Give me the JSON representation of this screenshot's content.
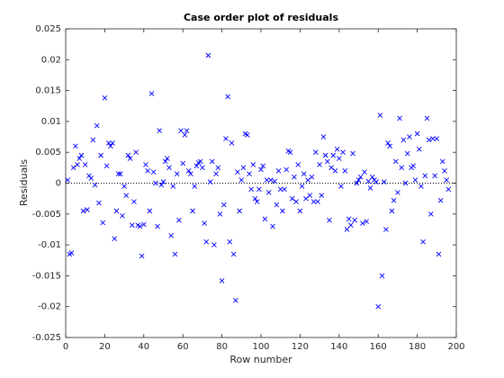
{
  "chart_data": {
    "type": "scatter",
    "title": "Case order plot of residuals",
    "xlabel": "Row number",
    "ylabel": "Residuals",
    "x": [
      1,
      2,
      3,
      4,
      5,
      6,
      7,
      8,
      9,
      10,
      11,
      12,
      13,
      14,
      15,
      16,
      17,
      18,
      19,
      20,
      21,
      22,
      23,
      24,
      25,
      26,
      27,
      28,
      29,
      30,
      31,
      32,
      33,
      34,
      35,
      36,
      37,
      38,
      39,
      40,
      41,
      42,
      43,
      44,
      45,
      46,
      47,
      48,
      49,
      50,
      51,
      52,
      53,
      54,
      55,
      56,
      57,
      58,
      59,
      60,
      61,
      62,
      63,
      64,
      65,
      66,
      67,
      68,
      69,
      70,
      71,
      72,
      73,
      74,
      75,
      76,
      77,
      78,
      79,
      80,
      81,
      82,
      83,
      84,
      85,
      86,
      87,
      88,
      89,
      90,
      91,
      92,
      93,
      94,
      95,
      96,
      97,
      98,
      99,
      100,
      101,
      102,
      103,
      104,
      105,
      106,
      107,
      108,
      109,
      110,
      111,
      112,
      113,
      114,
      115,
      116,
      117,
      118,
      119,
      120,
      121,
      122,
      123,
      124,
      125,
      126,
      127,
      128,
      129,
      130,
      131,
      132,
      133,
      134,
      135,
      136,
      137,
      138,
      139,
      140,
      141,
      142,
      143,
      144,
      145,
      146,
      147,
      148,
      149,
      150,
      151,
      152,
      153,
      154,
      155,
      156,
      157,
      158,
      159,
      160,
      161,
      162,
      163,
      164,
      165,
      166,
      167,
      168,
      169,
      170,
      171,
      172,
      173,
      174,
      175,
      176,
      177,
      178,
      179,
      180,
      181,
      182,
      183,
      184,
      185,
      186,
      187,
      188,
      189,
      190,
      191,
      192,
      193,
      194,
      195,
      196
    ],
    "values": [
      0.0005,
      -0.0115,
      -0.0113,
      0.0025,
      0.006,
      0.003,
      0.004,
      0.0045,
      -0.0045,
      0.003,
      -0.0043,
      0.0012,
      0.0008,
      0.007,
      -0.0003,
      0.0093,
      -0.0032,
      0.0045,
      -0.0064,
      0.0138,
      0.0028,
      0.0065,
      0.006,
      0.0065,
      -0.009,
      -0.0045,
      0.0015,
      0.0015,
      -0.0053,
      -0.0005,
      -0.002,
      0.0045,
      0.004,
      -0.0068,
      -0.003,
      0.005,
      -0.0068,
      -0.007,
      -0.0118,
      -0.0067,
      0.003,
      0.002,
      -0.0045,
      0.0145,
      0.0018,
      0,
      -0.007,
      0.0085,
      -0.0003,
      0.0002,
      0.0035,
      0.004,
      0.0025,
      -0.0085,
      -0.0005,
      -0.0115,
      0.0015,
      -0.006,
      0.0085,
      0.0032,
      0.0078,
      0.0085,
      0.002,
      0.0015,
      -0.0045,
      -0.0005,
      0.0028,
      0.0033,
      0.0035,
      0.0025,
      -0.0065,
      -0.0095,
      0.0207,
      0.0002,
      0.0035,
      -0.01,
      0.0015,
      0.0025,
      -0.005,
      -0.0158,
      -0.0035,
      0.0072,
      0.014,
      -0.0095,
      0.0065,
      -0.0115,
      -0.019,
      0.0018,
      -0.0045,
      0.0005,
      0.0025,
      0.008,
      0.0078,
      0.0015,
      -0.001,
      0.003,
      -0.0025,
      -0.003,
      -0.001,
      0.0022,
      0.0028,
      -0.0058,
      0.0005,
      -0.0015,
      0.0005,
      -0.007,
      0.0003,
      -0.0035,
      0.002,
      -0.001,
      -0.0045,
      -0.001,
      0.0022,
      0.0052,
      0.005,
      -0.0025,
      0.001,
      -0.003,
      0.003,
      -0.0045,
      -0.0005,
      0.0015,
      -0.0025,
      0.0005,
      -0.002,
      0.001,
      -0.003,
      0.005,
      -0.003,
      0.003,
      -0.002,
      0.0075,
      0.0045,
      0.0035,
      -0.006,
      0.0025,
      0.0045,
      0.002,
      0.0055,
      0.004,
      -0.0005,
      0.005,
      0.002,
      -0.0075,
      -0.0058,
      -0.0068,
      0.0048,
      -0.006,
      0,
      0.0005,
      0.001,
      -0.0065,
      0.0018,
      -0.0062,
      0.0003,
      -0.0008,
      0.001,
      0.0005,
      0.0002,
      -0.02,
      0.011,
      -0.015,
      0.0002,
      -0.0075,
      0.0065,
      0.006,
      -0.0045,
      -0.0028,
      0.0035,
      -0.0015,
      0.0105,
      0.0025,
      0.007,
      0,
      0.0048,
      0.0075,
      0.0025,
      0.0028,
      0.0005,
      0.008,
      0.0055,
      -0.0005,
      -0.0095,
      0.0012,
      0.0105,
      0.007,
      -0.005,
      0.0072,
      0.0012,
      0.0072,
      -0.0115,
      -0.0028,
      0.0035,
      0.002,
      0.0005,
      -0.001
    ],
    "color": "#0000ff",
    "hline": 0,
    "xlim": [
      0,
      200
    ],
    "xticks": [
      0,
      20,
      40,
      60,
      80,
      100,
      120,
      140,
      160,
      180,
      200
    ],
    "ylim": [
      -0.025,
      0.025
    ],
    "yticks": [
      -0.025,
      -0.02,
      -0.015,
      -0.01,
      -0.005,
      0,
      0.005,
      0.01,
      0.015,
      0.02,
      0.025
    ],
    "grid": false
  }
}
